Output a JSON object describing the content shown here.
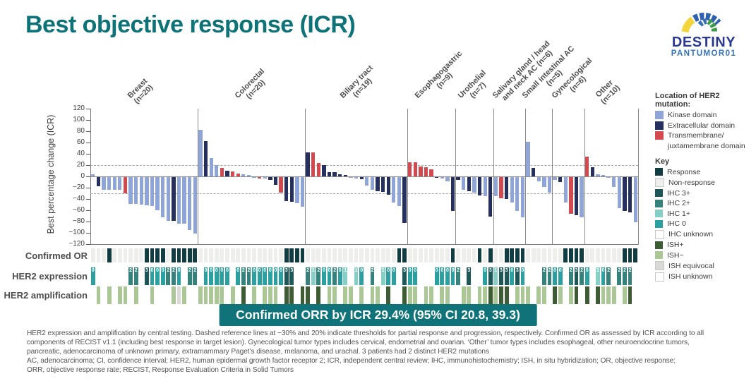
{
  "title": "Best objective response (ICR)",
  "logo": {
    "line1": "DESTINY",
    "line2": "PANTUMOR01"
  },
  "rows": {
    "or": "Confirmed OR",
    "ihc": "HER2 expression",
    "ish": "HER2 amplification"
  },
  "banner": "Confirmed ORR by ICR 29.4% (95% CI 20.8, 39.3)",
  "footnotes": [
    "HER2 expression and amplification by central testing. Dashed reference lines at −30% and 20% indicate thresholds for partial response and progression, respectively. Confirmed OR as assessed by ICR according to all",
    "components of RECIST v1.1 (including best response in target lesion). Gynecological tumor types includes cervical, endometrial and ovarian. ‘Other’ tumor types includes esophageal, other neuroendocrine tumors,",
    "pancreatic, adenocarcinoma of unknown primary, extramammary Paget’s disease, melanoma, and urachal. 3 patients had 2 distinct HER2 mutations",
    "AC, adenocarcinoma; CI, confidence interval; HER2, human epidermal growth factor receptor 2; ICR, independent central review; IHC, immunohistochemistry; ISH, in situ hybridization; OR, objective response;",
    "ORR, objective response rate; RECIST, Response Evaluation Criteria in Solid Tumors"
  ],
  "colors": {
    "kinase": "#8fa5d8",
    "extracellular": "#25305f",
    "transmembrane": "#d2494f",
    "response": "#113c41",
    "non_response": "#eeeeec",
    "ihc3": "#1e5758",
    "ihc2": "#35827c",
    "ihc1": "#85cfc6",
    "ihc0": "#2ba0a1",
    "ihc_unknown": "#ffffff",
    "ish_pos": "#3e5c34",
    "ish_neg": "#abc796",
    "ish_eq": "#d9d9d6",
    "ish_unknown": "#ffffff",
    "banner_bg": "#11737a",
    "title": "#0e7378"
  },
  "mutation_legend": {
    "title": "Location of HER2 mutation:",
    "items": [
      {
        "label": "Kinase domain",
        "color_key": "kinase"
      },
      {
        "label": "Extracellular domain",
        "color_key": "extracellular"
      },
      {
        "label": "Transmembrane/",
        "label2": "juxtamembrane domain",
        "color_key": "transmembrane"
      }
    ]
  },
  "key_legend": {
    "title": "Key",
    "items": [
      {
        "label": "Response",
        "color_key": "response"
      },
      {
        "label": "Non-response",
        "color_key": "non_response",
        "border": true
      },
      {
        "label": "IHC 3+",
        "color_key": "ihc3"
      },
      {
        "label": "IHC 2+",
        "color_key": "ihc2"
      },
      {
        "label": "IHC 1+",
        "color_key": "ihc1"
      },
      {
        "label": "IHC 0",
        "color_key": "ihc0"
      },
      {
        "label": "IHC unknown",
        "color_key": "ihc_unknown",
        "border": true
      },
      {
        "label": "ISH+",
        "color_key": "ish_pos"
      },
      {
        "label": "ISH−",
        "color_key": "ish_neg"
      },
      {
        "label": "ISH equivocal",
        "color_key": "ish_eq",
        "border": true
      },
      {
        "label": "ISH unknown",
        "color_key": "ish_unknown",
        "border": true
      }
    ]
  },
  "chart_data": {
    "type": "bar",
    "title": "Waterfall plot of best percentage change from baseline by tumor type",
    "xlabel": "",
    "ylabel": "Best percentage change (ICR)",
    "ylim": [
      -120,
      120
    ],
    "yticks": [
      120,
      100,
      80,
      60,
      40,
      20,
      0,
      -20,
      -40,
      -60,
      -80,
      -100,
      -120
    ],
    "ref_lines": [
      20,
      -30
    ],
    "grid": false,
    "legend_position": "right",
    "groups": [
      {
        "label_line1": "Breast",
        "label_line2": "(n=20)",
        "n": 20,
        "values": [
          4,
          -16,
          -22,
          -23,
          -22,
          -23,
          -29,
          -47,
          -48,
          -49,
          -50,
          -51,
          -59,
          -71,
          -77,
          -78,
          -82,
          -82,
          -94,
          -100
        ],
        "mutation": [
          "k",
          "e",
          "k",
          "k",
          "k",
          "k",
          "t",
          "k",
          "k",
          "k",
          "k",
          "k",
          "k",
          "k",
          "k",
          "e",
          "k",
          "k",
          "k",
          "k"
        ],
        "confirmed_or": [
          false,
          false,
          false,
          true,
          false,
          false,
          false,
          false,
          false,
          false,
          true,
          true,
          true,
          true,
          false,
          true,
          true,
          true,
          true,
          true
        ],
        "ihc": [
          "0",
          null,
          null,
          null,
          null,
          null,
          null,
          "2",
          "2",
          null,
          "3",
          "0",
          "0",
          "0",
          "2",
          "2",
          "0",
          null,
          "2",
          "2"
        ],
        "ish": [
          null,
          "-",
          null,
          "-",
          null,
          "-",
          "-",
          null,
          "-",
          null,
          null,
          "-",
          null,
          null,
          null,
          "-",
          "eq",
          "-",
          null,
          null
        ]
      },
      {
        "label_line1": "Colorectal",
        "label_line2": "(n=20)",
        "n": 20,
        "values": [
          82,
          62,
          33,
          20,
          15,
          10,
          9,
          5,
          4,
          2,
          -1,
          -2,
          -3,
          -5,
          -14,
          -28,
          -42,
          -44,
          -46,
          -52
        ],
        "mutation": [
          "k",
          "e",
          "k",
          "k",
          "t",
          "e",
          "t",
          "t",
          "k",
          "k",
          "k",
          "t",
          "k",
          "e",
          "e",
          "t",
          "e",
          "e",
          "k",
          "k"
        ],
        "confirmed_or": [
          false,
          false,
          false,
          false,
          false,
          false,
          false,
          false,
          false,
          false,
          false,
          false,
          false,
          false,
          false,
          false,
          true,
          true,
          true,
          true
        ],
        "ihc": [
          null,
          "0",
          "0",
          "0",
          "0",
          "0",
          null,
          "0",
          "2",
          "2",
          "0",
          "0",
          "0",
          "0",
          "0",
          "0",
          "3",
          "3",
          null,
          null
        ],
        "ish": [
          "-",
          "-",
          "-",
          "-",
          "-",
          null,
          "-",
          null,
          "+",
          null,
          "-",
          null,
          "-",
          "-",
          "-",
          null,
          "+",
          "+",
          null,
          "+"
        ]
      },
      {
        "label_line1": "Biliary tract",
        "label_line2": "(n=19)",
        "n": 19,
        "values": [
          43,
          42,
          24,
          20,
          8,
          7,
          4,
          2,
          -1,
          -2,
          -4,
          -15,
          -22,
          -25,
          -26,
          -31,
          -45,
          -51,
          -81
        ],
        "mutation": [
          "e",
          "t",
          "t",
          "e",
          "e",
          "e",
          "e",
          "e",
          "k",
          "k",
          "e",
          "k",
          "k",
          "e",
          "e",
          "e",
          "k",
          "k",
          "e"
        ],
        "confirmed_or": [
          false,
          false,
          false,
          false,
          false,
          false,
          false,
          false,
          false,
          false,
          false,
          false,
          false,
          false,
          false,
          false,
          false,
          true,
          true
        ],
        "ihc": [
          "2",
          "1",
          "2",
          "0",
          "0",
          "2",
          "0",
          "1",
          null,
          "1",
          "0",
          null,
          "2",
          null,
          "1",
          "0",
          "0",
          null,
          "3"
        ],
        "ish": [
          "+",
          null,
          "+",
          null,
          "-",
          "-",
          null,
          "-",
          "-",
          null,
          "-",
          null,
          "-",
          "-",
          null,
          "+",
          null,
          null,
          "+"
        ]
      },
      {
        "label_line1": "Esophagogastric",
        "label_line2": "(n=9)",
        "n": 9,
        "values": [
          25,
          25,
          17,
          16,
          13,
          -1,
          -2,
          -8,
          -60
        ],
        "mutation": [
          "t",
          "t",
          "t",
          "t",
          "t",
          "e",
          "k",
          "k",
          "e"
        ],
        "confirmed_or": [
          false,
          false,
          false,
          false,
          false,
          false,
          false,
          false,
          true
        ],
        "ihc": [
          "0",
          "0",
          null,
          null,
          null,
          "0",
          "0",
          "0",
          "0"
        ],
        "ish": [
          "-",
          "-",
          null,
          "-",
          "-",
          null,
          "-",
          "-",
          null
        ]
      },
      {
        "label_line1": "Urothelial",
        "label_line2": "(n=7)",
        "n": 7,
        "values": [
          -5,
          -22,
          -25,
          -28,
          -33,
          -34,
          -70
        ],
        "mutation": [
          "e",
          "k",
          "e",
          "k",
          "e",
          "k",
          "e"
        ],
        "confirmed_or": [
          false,
          false,
          false,
          false,
          true,
          false,
          true
        ],
        "ihc": [
          "2",
          null,
          "3",
          null,
          null,
          "0",
          "3"
        ],
        "ish": [
          null,
          "-",
          "-",
          null,
          "-",
          "-",
          "+"
        ]
      },
      {
        "label_line1": "Salivary gland / head",
        "label_line2": "and neck AC (n=6)",
        "n": 6,
        "values": [
          -34,
          -37,
          -39,
          -45,
          -60,
          -71
        ],
        "mutation": [
          "k",
          "t",
          "e",
          "k",
          "k",
          "k"
        ],
        "confirmed_or": [
          false,
          false,
          true,
          true,
          true,
          true
        ],
        "ihc": [
          "1",
          "3",
          "3",
          "0",
          "3",
          "0"
        ],
        "ish": [
          "-",
          "+",
          "+",
          null,
          "-",
          "-"
        ]
      },
      {
        "label_line1": "Small intestinal AC",
        "label_line2": "(n=5)",
        "n": 5,
        "values": [
          61,
          15,
          -7,
          -18,
          -27
        ],
        "mutation": [
          "k",
          "e",
          "k",
          "k",
          "k"
        ],
        "confirmed_or": [
          false,
          false,
          false,
          false,
          false
        ],
        "ihc": [
          null,
          null,
          null,
          "2",
          "2"
        ],
        "ish": [
          "-",
          null,
          "-",
          "-",
          null
        ]
      },
      {
        "label_line1": "Gynecological",
        "label_line2": "(n=6)",
        "n": 6,
        "values": [
          -5,
          -9,
          -45,
          -65,
          -68,
          -71
        ],
        "mutation": [
          "k",
          "e",
          "k",
          "t",
          "e",
          "k"
        ],
        "confirmed_or": [
          false,
          false,
          true,
          true,
          true,
          true
        ],
        "ihc": [
          "0",
          "0",
          null,
          "2",
          "3",
          "2"
        ],
        "ish": [
          "+",
          "-",
          null,
          "-",
          "+",
          null
        ]
      },
      {
        "label_line1": "Other",
        "label_line2": "(n=10)",
        "n": 10,
        "values": [
          35,
          16,
          4,
          3,
          -1,
          -18,
          -55,
          -60,
          -62,
          -80
        ],
        "mutation": [
          "t",
          "e",
          "k",
          "k",
          "k",
          "k",
          "k",
          "e",
          "e",
          "k"
        ],
        "confirmed_or": [
          false,
          false,
          false,
          false,
          false,
          false,
          false,
          true,
          true,
          true
        ],
        "ihc": [
          "0",
          null,
          "1",
          "0",
          "2",
          null,
          "2",
          "2",
          "2",
          null
        ],
        "ish": [
          "+",
          null,
          "+",
          "-",
          "-",
          "-",
          null,
          "-",
          "+",
          null
        ]
      }
    ]
  }
}
